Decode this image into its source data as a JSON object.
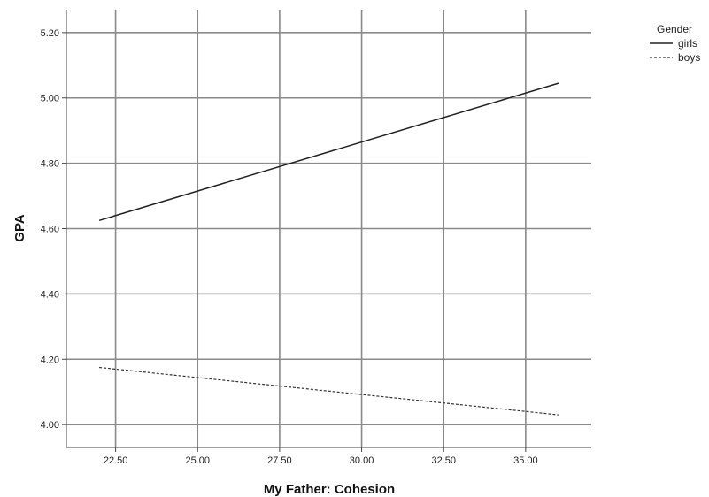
{
  "chart_data": {
    "type": "line",
    "title": "",
    "xlabel": "My Father: Cohesion",
    "ylabel": "GPA",
    "xlim": [
      21,
      37
    ],
    "ylim": [
      3.93,
      5.27
    ],
    "x_ticks": [
      22.5,
      25.0,
      27.5,
      30.0,
      32.5,
      35.0
    ],
    "y_ticks": [
      4.0,
      4.2,
      4.4,
      4.6,
      4.8,
      5.0,
      5.2
    ],
    "x_tick_labels": [
      "22.50",
      "25.00",
      "27.50",
      "30.00",
      "32.50",
      "35.00"
    ],
    "y_tick_labels": [
      "4.00",
      "4.20",
      "4.40",
      "4.60",
      "4.80",
      "5.00",
      "5.20"
    ],
    "grid": true,
    "legend": {
      "title": "Gender",
      "placement": "top-right-outside"
    },
    "series": [
      {
        "name": "girls",
        "style": "solid",
        "color": "#222222",
        "x": [
          22.0,
          36.0
        ],
        "y": [
          4.625,
          5.045
        ]
      },
      {
        "name": "boys",
        "style": "dashed",
        "color": "#333333",
        "x": [
          22.0,
          36.0
        ],
        "y": [
          4.175,
          4.03
        ]
      }
    ]
  }
}
